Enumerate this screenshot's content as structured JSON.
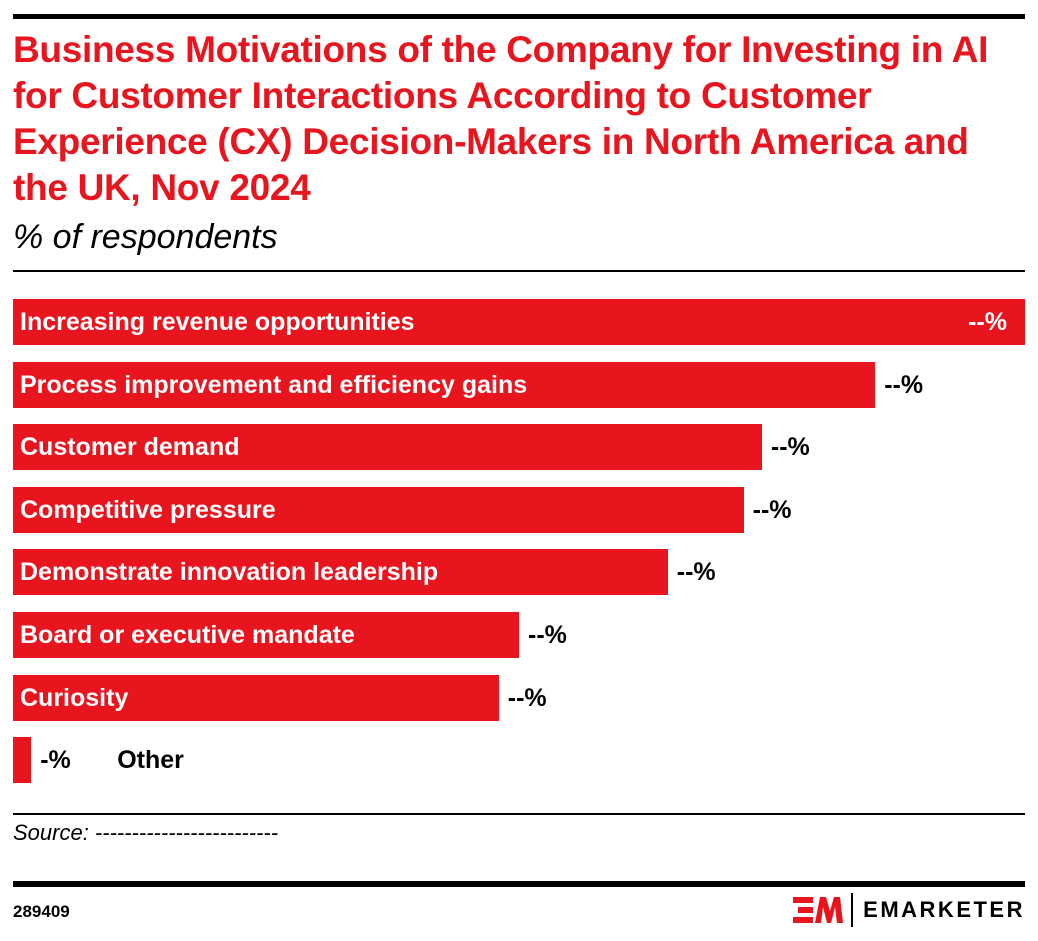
{
  "chart_data": {
    "type": "bar",
    "orientation": "horizontal",
    "title": "Business Motivations of the Company for Investing in AI for Customer Interactions According to Customer Experience (CX) Decision-Makers in North America and the UK, Nov 2024",
    "subtitle": "% of respondents",
    "categories": [
      "Increasing revenue opportunities",
      "Process improvement and efficiency gains",
      "Customer demand",
      "Competitive pressure",
      "Demonstrate innovation leadership",
      "Board or executive mandate",
      "Curiosity",
      "Other"
    ],
    "value_labels": [
      "--%",
      "--%",
      "--%",
      "--%",
      "--%",
      "--%",
      "--%",
      "-%"
    ],
    "values": [
      1.0,
      0.852,
      0.74,
      0.722,
      0.647,
      0.5,
      0.48,
      0.018
    ],
    "values_unit": "relative to largest bar (actual values not shown)",
    "bar_color": "#e8141e",
    "grid": false
  },
  "footer": {
    "source": "Source: -------------------------",
    "chart_id": "289409",
    "logo_text": "EMARKETER"
  }
}
